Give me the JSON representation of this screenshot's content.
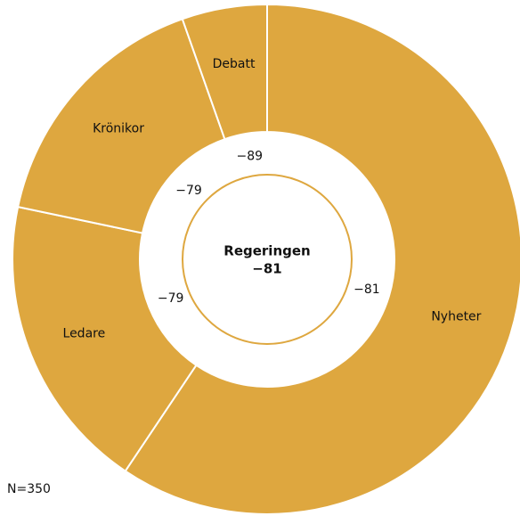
{
  "chart_data": {
    "type": "donut",
    "categories": [
      "Nyheter",
      "Ledare",
      "Krönikor",
      "Debatt"
    ],
    "values": [
      59.4,
      18.9,
      16.3,
      5.4
    ],
    "scores": [
      -81,
      -79,
      -79,
      -89
    ],
    "score_labels": [
      "−81",
      "−79",
      "−79",
      "−89"
    ],
    "color": "#dea73f",
    "center_label": "Regeringen",
    "center_value": -81,
    "center_value_label": "−81",
    "note": "N=350"
  }
}
